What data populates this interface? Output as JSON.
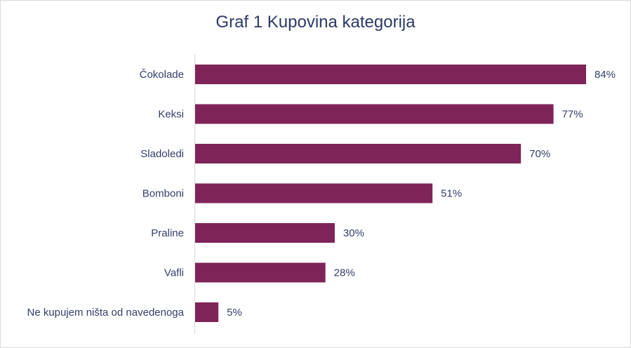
{
  "chart_data": {
    "type": "bar",
    "orientation": "horizontal",
    "title": "Graf 1 Kupovina kategorija",
    "categories": [
      "Čokolade",
      "Keksi",
      "Sladoledi",
      "Bomboni",
      "Praline",
      "Vafli",
      "Ne kupujem ništa od navedenoga"
    ],
    "values": [
      84,
      77,
      70,
      51,
      30,
      28,
      5
    ],
    "value_labels": [
      "84%",
      "77%",
      "70%",
      "51%",
      "30%",
      "28%",
      "5%"
    ],
    "xlim": [
      0,
      100
    ],
    "grid": false,
    "legend": "none",
    "bar_color": "#7f2459"
  }
}
